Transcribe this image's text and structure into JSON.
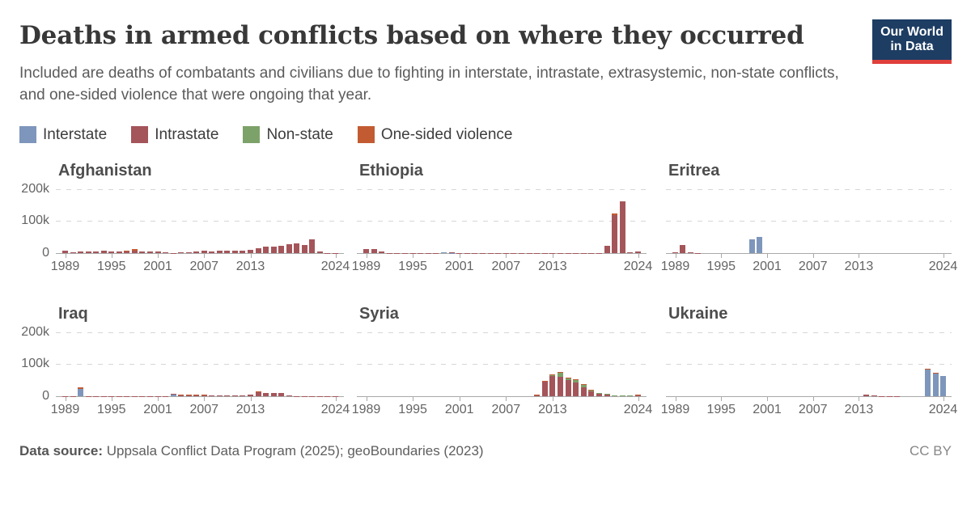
{
  "header": {
    "title": "Deaths in armed conflicts based on where they occurred",
    "subtitle": "Included are deaths of combatants and civilians due to fighting in interstate, intrastate, extrasystemic, non-state conflicts, and one-sided violence that were ongoing that year.",
    "logo": {
      "line1": "Our World",
      "line2": "in Data",
      "bg_color": "#1d3d63",
      "accent_color": "#e0403c"
    }
  },
  "legend": {
    "items": [
      {
        "key": "interstate",
        "label": "Interstate",
        "color": "#7e96bb"
      },
      {
        "key": "intrastate",
        "label": "Intrastate",
        "color": "#a4555a"
      },
      {
        "key": "nonstate",
        "label": "Non-state",
        "color": "#7da269"
      },
      {
        "key": "onesided",
        "label": "One-sided violence",
        "color": "#c35b32"
      }
    ]
  },
  "axes": {
    "x_range": [
      1989,
      2024
    ],
    "x_ticks": [
      1989,
      1995,
      2001,
      2007,
      2013,
      2024
    ],
    "y_ticks": [
      {
        "label": "0",
        "value": 0
      },
      {
        "label": "100k",
        "value": 100000
      },
      {
        "label": "200k",
        "value": 200000
      }
    ],
    "y_max": 200000,
    "grid": true
  },
  "chart_data": [
    {
      "type": "bar",
      "stacked": true,
      "title": "Afghanistan",
      "unit": "deaths",
      "ylim": [
        0,
        200000
      ],
      "bars": [
        {
          "year": 1989,
          "intrastate": 7000
        },
        {
          "year": 1990,
          "intrastate": 3500
        },
        {
          "year": 1991,
          "intrastate": 4000
        },
        {
          "year": 1992,
          "intrastate": 5000
        },
        {
          "year": 1993,
          "intrastate": 4000
        },
        {
          "year": 1994,
          "intrastate": 8500
        },
        {
          "year": 1995,
          "intrastate": 5500
        },
        {
          "year": 1996,
          "intrastate": 4000
        },
        {
          "year": 1997,
          "intrastate": 6000,
          "onesided": 500
        },
        {
          "year": 1998,
          "intrastate": 7000,
          "onesided": 4500
        },
        {
          "year": 1999,
          "intrastate": 4500
        },
        {
          "year": 2000,
          "intrastate": 4500
        },
        {
          "year": 2001,
          "intrastate": 5500
        },
        {
          "year": 2002,
          "intrastate": 1500
        },
        {
          "year": 2003,
          "intrastate": 1000
        },
        {
          "year": 2004,
          "intrastate": 1200
        },
        {
          "year": 2005,
          "intrastate": 2000
        },
        {
          "year": 2006,
          "intrastate": 4500
        },
        {
          "year": 2007,
          "intrastate": 6500
        },
        {
          "year": 2008,
          "intrastate": 5500
        },
        {
          "year": 2009,
          "intrastate": 6500
        },
        {
          "year": 2010,
          "intrastate": 7500
        },
        {
          "year": 2011,
          "intrastate": 8000
        },
        {
          "year": 2012,
          "intrastate": 8000
        },
        {
          "year": 2013,
          "intrastate": 9500
        },
        {
          "year": 2014,
          "intrastate": 15000
        },
        {
          "year": 2015,
          "intrastate": 19000
        },
        {
          "year": 2016,
          "intrastate": 20000
        },
        {
          "year": 2017,
          "intrastate": 22000
        },
        {
          "year": 2018,
          "intrastate": 27000
        },
        {
          "year": 2019,
          "intrastate": 31000
        },
        {
          "year": 2020,
          "intrastate": 24000
        },
        {
          "year": 2021,
          "intrastate": 42000
        },
        {
          "year": 2022,
          "intrastate": 4000
        },
        {
          "year": 2023,
          "intrastate": 1000
        },
        {
          "year": 2024,
          "intrastate": 800
        }
      ]
    },
    {
      "type": "bar",
      "stacked": true,
      "title": "Ethiopia",
      "unit": "deaths",
      "ylim": [
        0,
        200000
      ],
      "bars": [
        {
          "year": 1989,
          "intrastate": 13000
        },
        {
          "year": 1990,
          "intrastate": 13000
        },
        {
          "year": 1991,
          "intrastate": 4500
        },
        {
          "year": 1992,
          "intrastate": 400
        },
        {
          "year": 1993,
          "intrastate": 300
        },
        {
          "year": 1994,
          "intrastate": 300
        },
        {
          "year": 1995,
          "intrastate": 200
        },
        {
          "year": 1996,
          "intrastate": 500
        },
        {
          "year": 1997,
          "intrastate": 400
        },
        {
          "year": 1998,
          "intrastate": 400
        },
        {
          "year": 1999,
          "interstate": 2500
        },
        {
          "year": 2000,
          "interstate": 1000,
          "intrastate": 300
        },
        {
          "year": 2001,
          "intrastate": 300
        },
        {
          "year": 2002,
          "intrastate": 300
        },
        {
          "year": 2003,
          "intrastate": 400
        },
        {
          "year": 2004,
          "intrastate": 300
        },
        {
          "year": 2005,
          "intrastate": 300
        },
        {
          "year": 2006,
          "intrastate": 500
        },
        {
          "year": 2007,
          "intrastate": 500
        },
        {
          "year": 2008,
          "intrastate": 400
        },
        {
          "year": 2009,
          "intrastate": 400
        },
        {
          "year": 2010,
          "intrastate": 300
        },
        {
          "year": 2011,
          "intrastate": 300
        },
        {
          "year": 2012,
          "intrastate": 400
        },
        {
          "year": 2013,
          "intrastate": 300
        },
        {
          "year": 2014,
          "intrastate": 400
        },
        {
          "year": 2015,
          "intrastate": 400
        },
        {
          "year": 2016,
          "intrastate": 800
        },
        {
          "year": 2017,
          "intrastate": 600
        },
        {
          "year": 2018,
          "intrastate": 700
        },
        {
          "year": 2019,
          "intrastate": 600
        },
        {
          "year": 2020,
          "intrastate": 22000
        },
        {
          "year": 2021,
          "intrastate": 120000,
          "onesided": 4000
        },
        {
          "year": 2022,
          "intrastate": 162000
        },
        {
          "year": 2023,
          "intrastate": 2500
        },
        {
          "year": 2024,
          "intrastate": 4000
        }
      ]
    },
    {
      "type": "bar",
      "stacked": true,
      "title": "Eritrea",
      "unit": "deaths",
      "ylim": [
        0,
        200000
      ],
      "bars": [
        {
          "year": 1989,
          "intrastate": 3000
        },
        {
          "year": 1990,
          "intrastate": 26000
        },
        {
          "year": 1991,
          "intrastate": 3500
        },
        {
          "year": 1992,
          "intrastate": 500
        },
        {
          "year": 1999,
          "interstate": 44000
        },
        {
          "year": 2000,
          "interstate": 50000
        }
      ]
    },
    {
      "type": "bar",
      "stacked": true,
      "title": "Iraq",
      "unit": "deaths",
      "ylim": [
        0,
        200000
      ],
      "bars": [
        {
          "year": 1989,
          "intrastate": 500
        },
        {
          "year": 1990,
          "intrastate": 300
        },
        {
          "year": 1991,
          "interstate": 23000,
          "onesided": 5000
        },
        {
          "year": 1992,
          "intrastate": 500
        },
        {
          "year": 1993,
          "intrastate": 300
        },
        {
          "year": 1994,
          "intrastate": 400
        },
        {
          "year": 1995,
          "intrastate": 500
        },
        {
          "year": 1996,
          "intrastate": 1000
        },
        {
          "year": 1997,
          "intrastate": 300
        },
        {
          "year": 1998,
          "intrastate": 300
        },
        {
          "year": 1999,
          "intrastate": 300
        },
        {
          "year": 2000,
          "intrastate": 200
        },
        {
          "year": 2001,
          "intrastate": 200
        },
        {
          "year": 2002,
          "intrastate": 200
        },
        {
          "year": 2003,
          "interstate": 7500,
          "intrastate": 1000
        },
        {
          "year": 2004,
          "intrastate": 4000,
          "onesided": 1000
        },
        {
          "year": 2005,
          "intrastate": 4000,
          "onesided": 800
        },
        {
          "year": 2006,
          "intrastate": 5000,
          "onesided": 1000
        },
        {
          "year": 2007,
          "intrastate": 5000,
          "onesided": 800
        },
        {
          "year": 2008,
          "intrastate": 2500
        },
        {
          "year": 2009,
          "intrastate": 2000
        },
        {
          "year": 2010,
          "intrastate": 2000
        },
        {
          "year": 2011,
          "intrastate": 1500
        },
        {
          "year": 2012,
          "intrastate": 1500
        },
        {
          "year": 2013,
          "intrastate": 6000
        },
        {
          "year": 2014,
          "intrastate": 13000,
          "onesided": 2000
        },
        {
          "year": 2015,
          "intrastate": 10500
        },
        {
          "year": 2016,
          "intrastate": 10500
        },
        {
          "year": 2017,
          "intrastate": 10500
        },
        {
          "year": 2018,
          "intrastate": 2000
        },
        {
          "year": 2019,
          "intrastate": 1000
        },
        {
          "year": 2020,
          "intrastate": 700
        },
        {
          "year": 2021,
          "intrastate": 500
        },
        {
          "year": 2022,
          "intrastate": 300
        },
        {
          "year": 2023,
          "intrastate": 300
        },
        {
          "year": 2024,
          "intrastate": 200
        }
      ]
    },
    {
      "type": "bar",
      "stacked": true,
      "title": "Syria",
      "unit": "deaths",
      "ylim": [
        0,
        200000
      ],
      "bars": [
        {
          "year": 2011,
          "intrastate": 3000,
          "onesided": 800
        },
        {
          "year": 2012,
          "intrastate": 46000,
          "onesided": 2500
        },
        {
          "year": 2013,
          "intrastate": 64000,
          "nonstate": 1500,
          "onesided": 2500
        },
        {
          "year": 2014,
          "intrastate": 61000,
          "nonstate": 12000,
          "onesided": 2500
        },
        {
          "year": 2015,
          "intrastate": 50000,
          "nonstate": 6000,
          "onesided": 1500
        },
        {
          "year": 2016,
          "intrastate": 44000,
          "nonstate": 7000,
          "onesided": 1000
        },
        {
          "year": 2017,
          "intrastate": 27000,
          "nonstate": 10000,
          "onesided": 1000
        },
        {
          "year": 2018,
          "intrastate": 14000,
          "nonstate": 5000,
          "onesided": 500
        },
        {
          "year": 2019,
          "intrastate": 8500,
          "nonstate": 2000
        },
        {
          "year": 2020,
          "intrastate": 5500,
          "nonstate": 1000
        },
        {
          "year": 2021,
          "intrastate": 3000,
          "nonstate": 500
        },
        {
          "year": 2022,
          "intrastate": 2500,
          "nonstate": 300
        },
        {
          "year": 2023,
          "intrastate": 1500,
          "nonstate": 300
        },
        {
          "year": 2024,
          "intrastate": 4000,
          "onesided": 300
        }
      ]
    },
    {
      "type": "bar",
      "stacked": true,
      "title": "Ukraine",
      "unit": "deaths",
      "ylim": [
        0,
        200000
      ],
      "bars": [
        {
          "year": 2014,
          "intrastate": 4200
        },
        {
          "year": 2015,
          "intrastate": 1200
        },
        {
          "year": 2016,
          "intrastate": 400
        },
        {
          "year": 2017,
          "intrastate": 300
        },
        {
          "year": 2018,
          "intrastate": 200
        },
        {
          "year": 2019,
          "intrastate": 150
        },
        {
          "year": 2020,
          "intrastate": 100
        },
        {
          "year": 2021,
          "intrastate": 100
        },
        {
          "year": 2022,
          "interstate": 84000,
          "onesided": 3000
        },
        {
          "year": 2023,
          "interstate": 71000,
          "onesided": 1500
        },
        {
          "year": 2024,
          "interstate": 64000
        }
      ]
    }
  ],
  "footer": {
    "source_label": "Data source:",
    "source_text": " Uppsala Conflict Data Program (2025); geoBoundaries (2023)",
    "license": "CC BY"
  }
}
